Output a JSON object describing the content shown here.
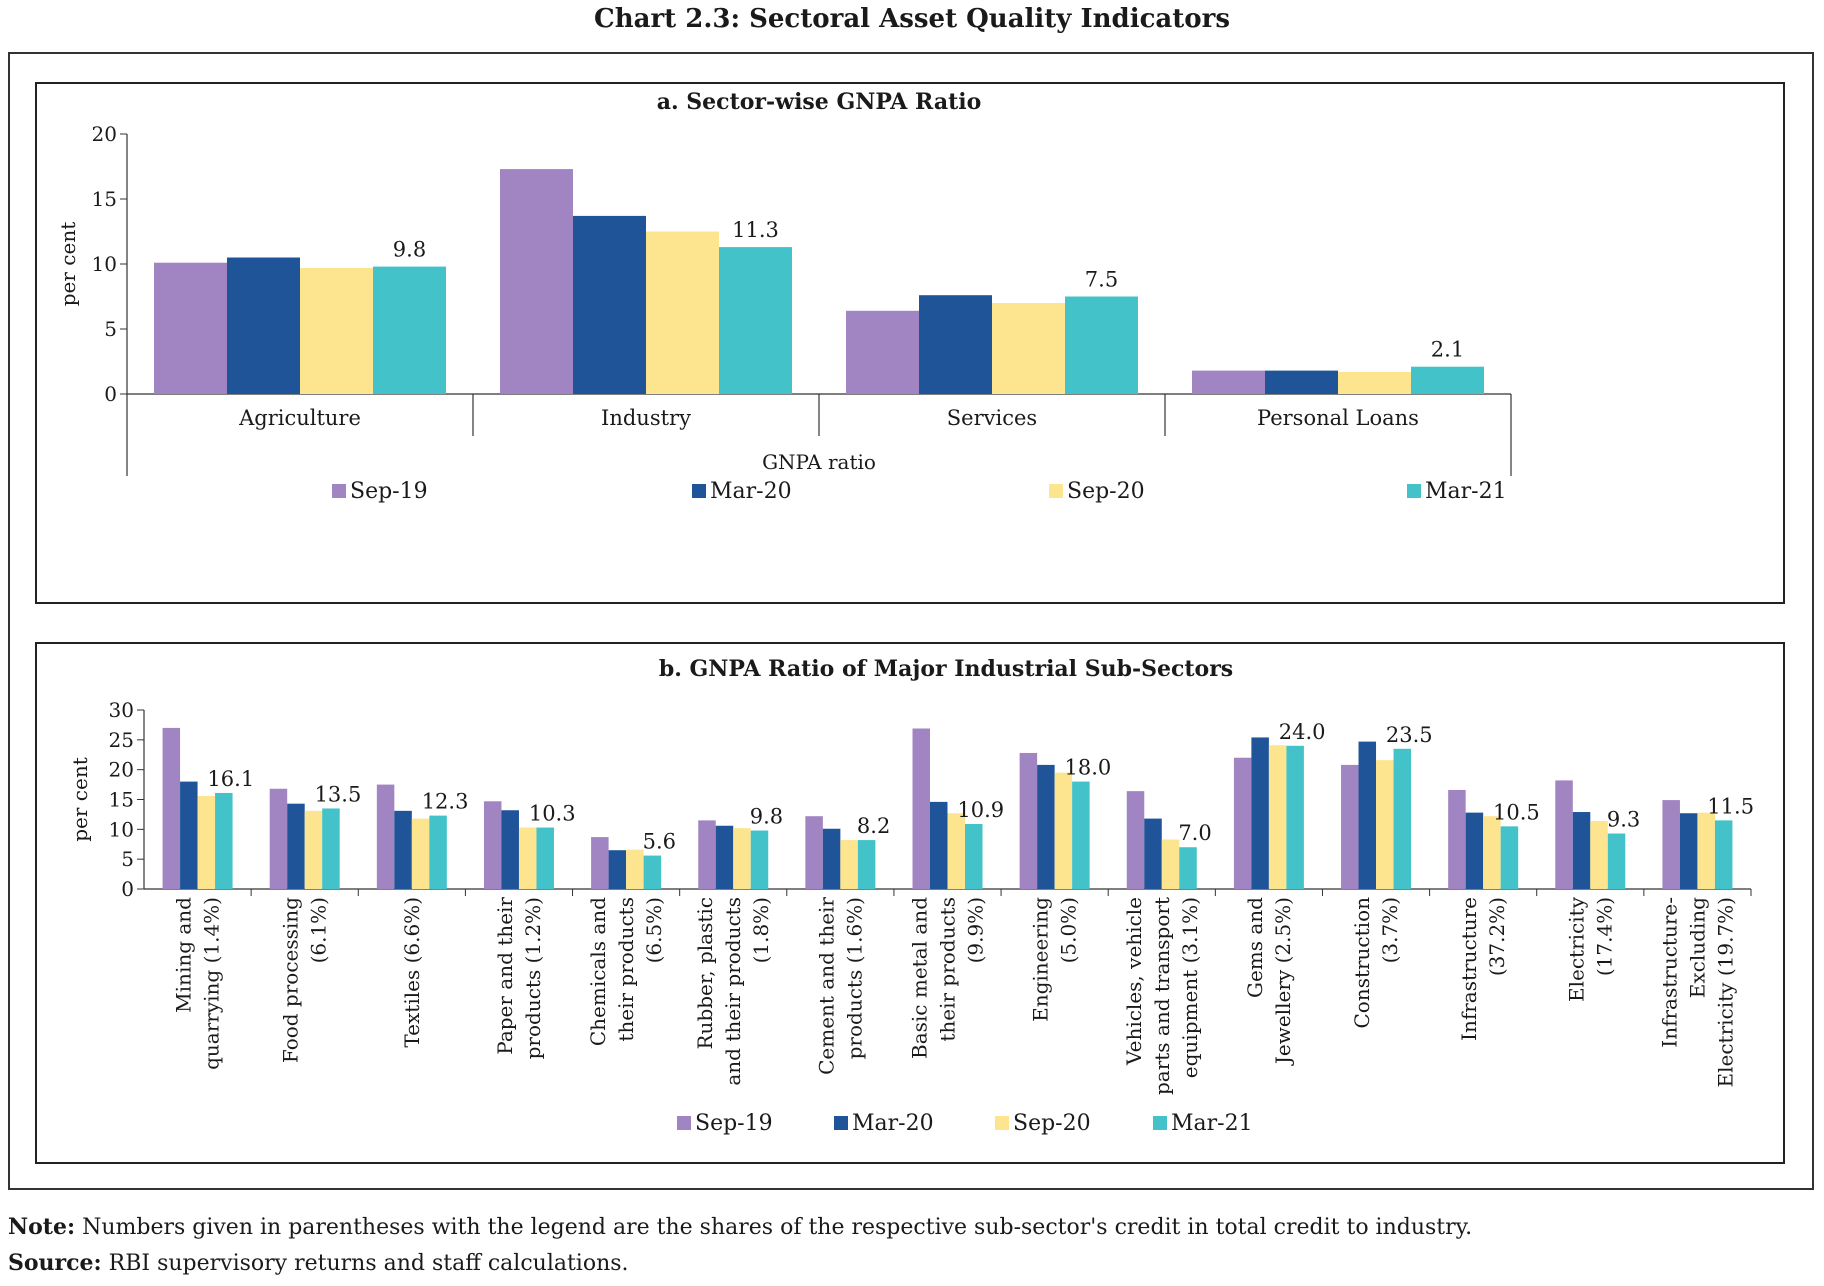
{
  "title": "Chart 2.3: Sectoral Asset Quality Indicators",
  "colors": {
    "Sep-19": "#a085c2",
    "Mar-20": "#1f5499",
    "Sep-20": "#fde58f",
    "Mar-21": "#43c3c9"
  },
  "chart_data": [
    {
      "type": "bar",
      "title": "a. Sector-wise GNPA Ratio",
      "ylabel": "per cent",
      "xlabel": "GNPA ratio",
      "ylim": [
        0,
        20
      ],
      "yticks": [
        "0",
        "5",
        "10",
        "15",
        "20"
      ],
      "legend_position": "bottom",
      "categories": [
        "Agriculture",
        "Industry",
        "Services",
        "Personal Loans"
      ],
      "series": [
        {
          "name": "Sep-19",
          "values": [
            10.1,
            17.3,
            6.4,
            1.8
          ]
        },
        {
          "name": "Mar-20",
          "values": [
            10.5,
            13.7,
            7.6,
            1.8
          ]
        },
        {
          "name": "Sep-20",
          "values": [
            9.7,
            12.5,
            7.0,
            1.7
          ]
        },
        {
          "name": "Mar-21",
          "values": [
            9.8,
            11.3,
            7.5,
            2.1
          ]
        }
      ],
      "data_labels": [
        "9.8",
        "11.3",
        "7.5",
        "2.1"
      ]
    },
    {
      "type": "bar",
      "title": "b. GNPA Ratio of Major Industrial Sub-Sectors",
      "ylabel": "per cent",
      "ylim": [
        0,
        30
      ],
      "yticks": [
        "0",
        "5",
        "10",
        "15",
        "20",
        "25",
        "30"
      ],
      "legend_position": "bottom",
      "categories": [
        [
          "Mining and",
          "quarrying (1.4%)"
        ],
        [
          "Food processing",
          "(6.1%)"
        ],
        [
          "Textiles (6.6%)"
        ],
        [
          "Paper and their",
          "products (1.2%)"
        ],
        [
          "Chemicals and",
          "their products",
          "(6.5%)"
        ],
        [
          "Rubber, plastic",
          "and their products",
          "(1.8%)"
        ],
        [
          "Cement  and their",
          "products (1.6%)"
        ],
        [
          "Basic metal and",
          "their products",
          "(9.9%)"
        ],
        [
          "Engineering",
          "(5.0%)"
        ],
        [
          "Vehicles, vehicle",
          "parts and transport",
          "equipment (3.1%)"
        ],
        [
          "Gems and",
          "Jewellery (2.5%)"
        ],
        [
          "Construction",
          "(3.7%)"
        ],
        [
          "Infrastructure",
          "(37.2%)"
        ],
        [
          "Electricity",
          "(17.4%)"
        ],
        [
          "Infrastructure-",
          "Excluding",
          "Electricity (19.7%)"
        ]
      ],
      "series": [
        {
          "name": "Sep-19",
          "values": [
            27.0,
            16.8,
            17.5,
            14.7,
            8.7,
            11.5,
            12.2,
            26.9,
            22.8,
            16.4,
            22.0,
            20.8,
            16.6,
            18.2,
            14.9
          ]
        },
        {
          "name": "Mar-20",
          "values": [
            18.0,
            14.3,
            13.1,
            13.2,
            6.5,
            10.6,
            10.1,
            14.6,
            20.8,
            11.8,
            25.4,
            24.7,
            12.8,
            12.9,
            12.7
          ]
        },
        {
          "name": "Sep-20",
          "values": [
            15.6,
            13.1,
            11.8,
            10.3,
            6.6,
            10.2,
            8.2,
            12.7,
            19.5,
            8.3,
            24.1,
            21.6,
            12.2,
            11.4,
            12.8
          ]
        },
        {
          "name": "Mar-21",
          "values": [
            16.1,
            13.5,
            12.3,
            10.3,
            5.6,
            9.8,
            8.2,
            10.9,
            18.0,
            7.0,
            24.0,
            23.5,
            10.5,
            9.3,
            11.5
          ]
        }
      ],
      "data_labels": [
        "16.1",
        "13.5",
        "12.3",
        "10.3",
        "5.6",
        "9.8",
        "8.2",
        "10.9",
        "18.0",
        "7.0",
        "24.0",
        "23.5",
        "10.5",
        "9.3",
        "11.5"
      ]
    }
  ],
  "note": {
    "label": "Note:",
    "text": "Numbers given in parentheses with the legend are the shares of the respective sub-sector's credit in total credit to industry."
  },
  "source": {
    "label": "Source:",
    "text": "RBI supervisory returns and staff calculations."
  }
}
